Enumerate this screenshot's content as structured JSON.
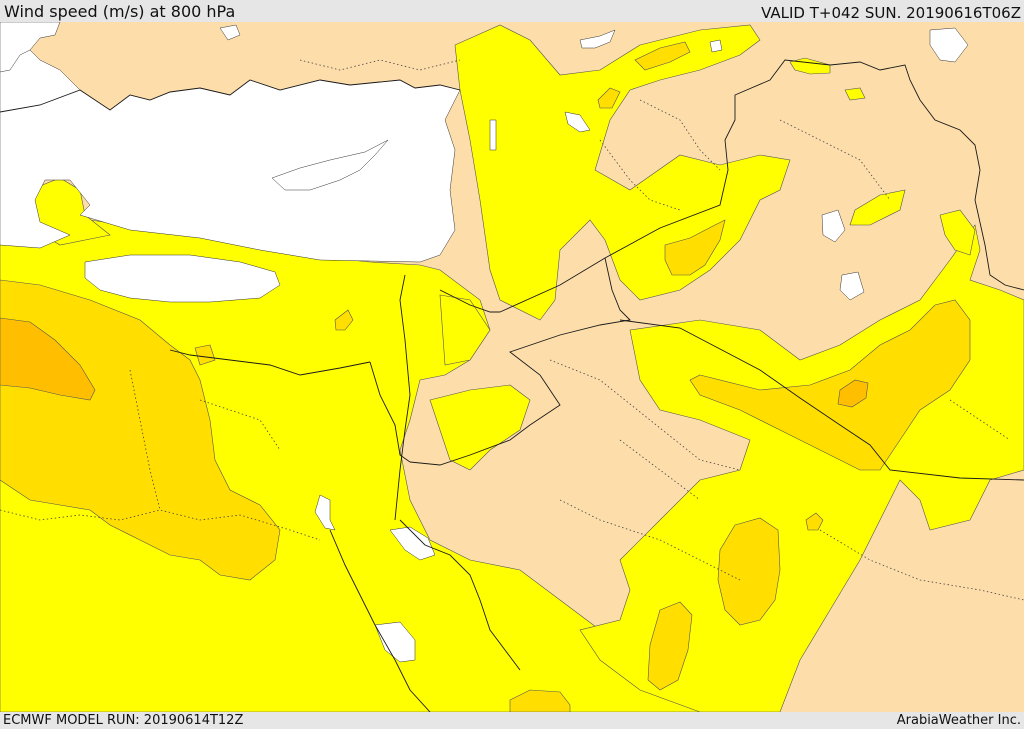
{
  "header": {
    "title": "Wind speed (m/s) at 800 hPa",
    "valid": "VALID T+042 SUN. 20190616T06Z"
  },
  "footer": {
    "model_run": "ECMWF MODEL RUN: 20190614T12Z",
    "credit": "ArabiaWeather Inc."
  },
  "map": {
    "colors": {
      "land_calm": "#fddeab",
      "water": "#ffffff",
      "band_1": "#ffff00",
      "band_2": "#ffde00",
      "band_3": "#ffbf00"
    }
  }
}
